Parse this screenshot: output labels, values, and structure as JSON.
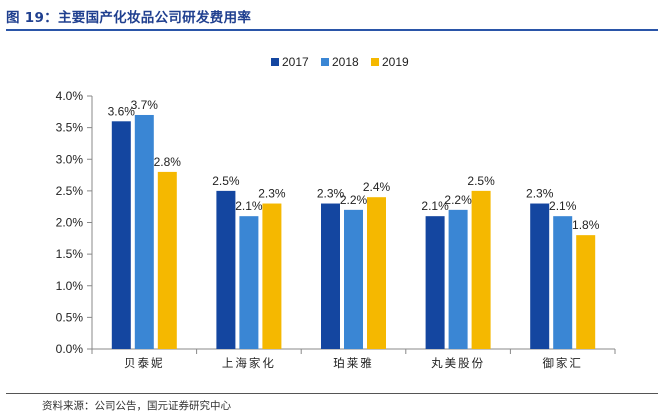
{
  "title": "图 19：主要国产化妆品公司研发费用率",
  "source": "资料来源：公司公告，国元证券研究中心",
  "chart_data": {
    "type": "bar",
    "categories": [
      "贝泰妮",
      "上海家化",
      "珀莱雅",
      "丸美股份",
      "御家汇"
    ],
    "series": [
      {
        "name": "2017",
        "color": "#1446a0",
        "values": [
          3.6,
          2.5,
          2.3,
          2.1,
          2.3
        ],
        "labels": [
          "3.6%",
          "2.5%",
          "2.3%",
          "2.1%",
          "2.3%"
        ]
      },
      {
        "name": "2018",
        "color": "#3a86d4",
        "values": [
          3.7,
          2.1,
          2.2,
          2.2,
          2.1
        ],
        "labels": [
          "3.7%",
          "2.1%",
          "2.2%",
          "2.2%",
          "2.1%"
        ]
      },
      {
        "name": "2019",
        "color": "#f5b800",
        "values": [
          2.8,
          2.3,
          2.4,
          2.5,
          1.8
        ],
        "labels": [
          "2.8%",
          "2.3%",
          "2.4%",
          "2.5%",
          "1.8%"
        ]
      }
    ],
    "ylim": [
      0,
      4.0
    ],
    "yticks": [
      "0.0%",
      "0.5%",
      "1.0%",
      "1.5%",
      "2.0%",
      "2.5%",
      "3.0%",
      "3.5%",
      "4.0%"
    ],
    "legend_position": "top-center",
    "grid": false
  }
}
